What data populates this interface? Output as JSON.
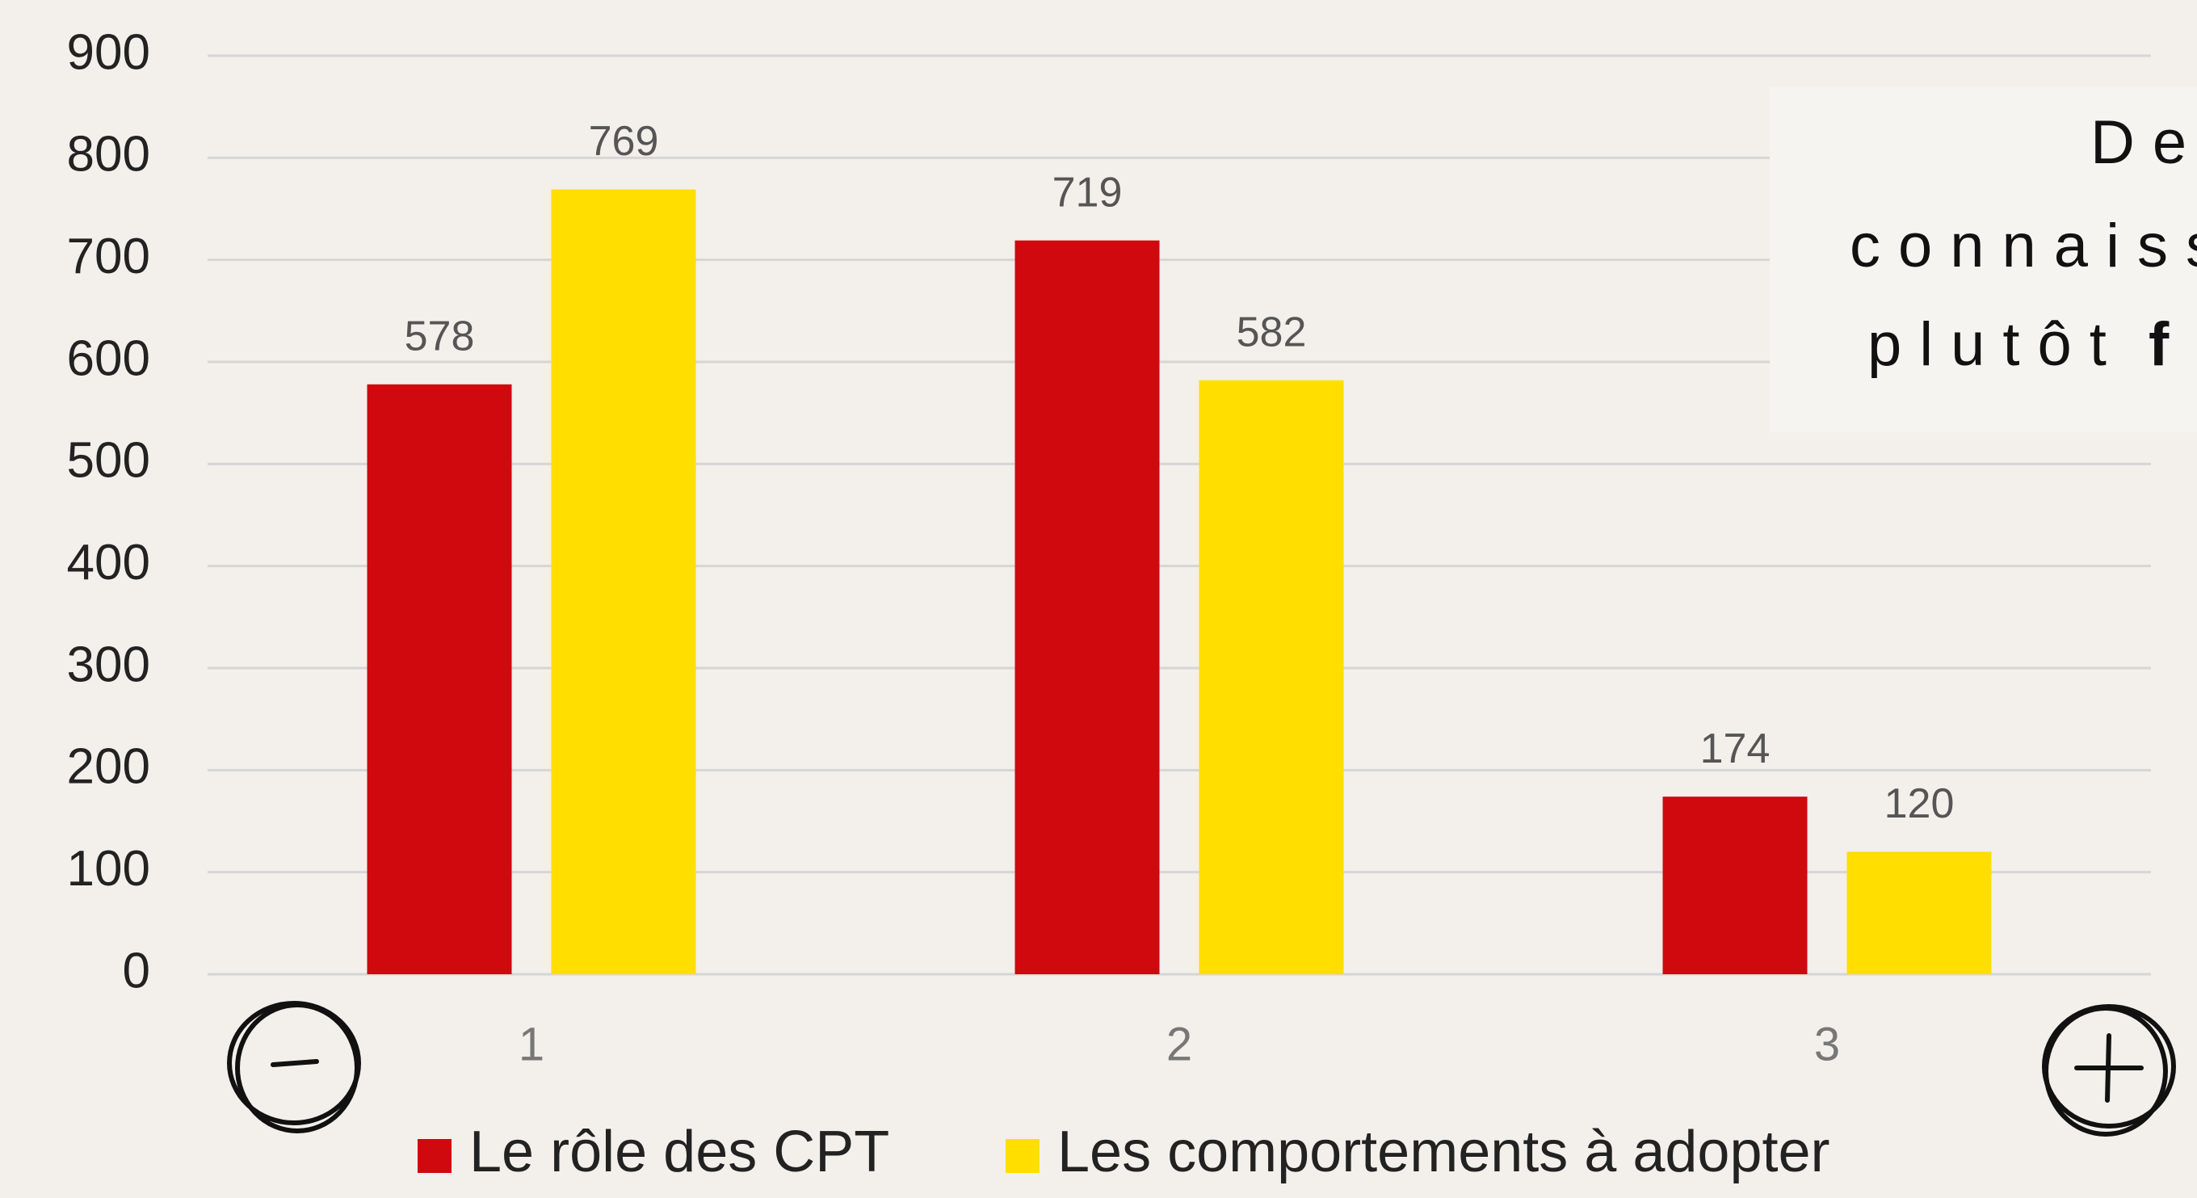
{
  "chart_data": {
    "type": "bar",
    "categories": [
      "1",
      "2",
      "3"
    ],
    "series": [
      {
        "name": "Le rôle des CPT",
        "color": "#d0090f",
        "values": [
          578,
          719,
          174
        ]
      },
      {
        "name": "Les comportements à adopter",
        "color": "#ffde00",
        "values": [
          769,
          582,
          120
        ]
      }
    ],
    "ylim": [
      0,
      900
    ],
    "yticks": [
      0,
      100,
      200,
      300,
      400,
      500,
      600,
      700,
      800,
      900
    ],
    "grid": true,
    "legend": "bottom",
    "annotation_lines": [
      "De",
      "connaiss",
      "plutôt"
    ],
    "annotation_bold": "f"
  }
}
